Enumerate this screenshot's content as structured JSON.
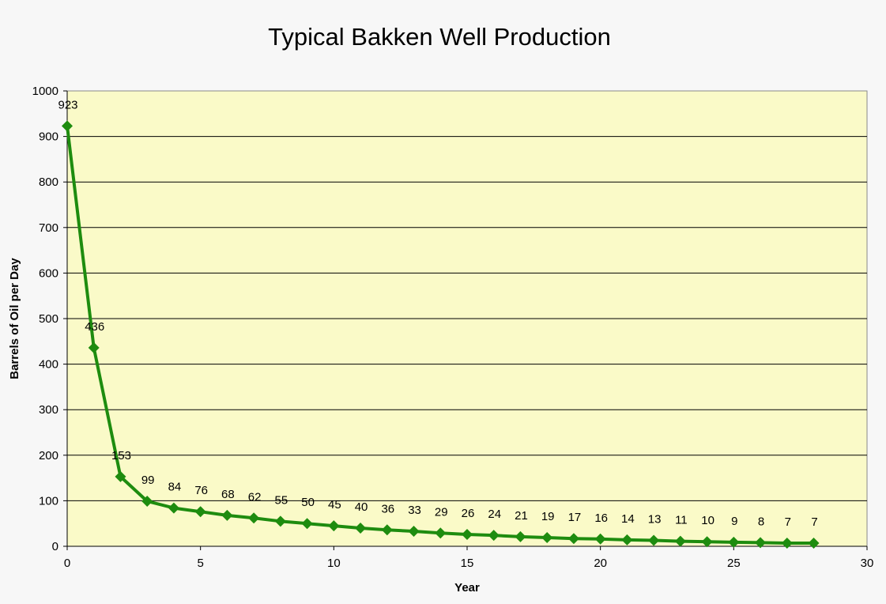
{
  "chart_data": {
    "type": "line",
    "title": "Typical Bakken Well Production",
    "xlabel": "Year",
    "ylabel": "Barrels of Oil per Day",
    "xlim": [
      0,
      30
    ],
    "ylim": [
      0,
      1000
    ],
    "xticks": [
      0,
      5,
      10,
      15,
      20,
      25,
      30
    ],
    "yticks": [
      0,
      100,
      200,
      300,
      400,
      500,
      600,
      700,
      800,
      900,
      1000
    ],
    "grid": "horizontal",
    "legend": "none",
    "x": [
      0,
      1,
      2,
      3,
      4,
      5,
      6,
      7,
      8,
      9,
      10,
      11,
      12,
      13,
      14,
      15,
      16,
      17,
      18,
      19,
      20,
      21,
      22,
      23,
      24,
      25,
      26,
      27,
      28
    ],
    "series": [
      {
        "values": [
          923,
          436,
          153,
          99,
          84,
          76,
          68,
          62,
          55,
          50,
          45,
          40,
          36,
          33,
          29,
          26,
          24,
          21,
          19,
          17,
          16,
          14,
          13,
          11,
          10,
          9,
          8,
          7,
          7
        ],
        "color": "#1e8c0f",
        "marker": "diamond",
        "data_labels": true
      }
    ],
    "colors": {
      "plot_background": "#fafac8",
      "page_background": "#f7f7f7",
      "gridline": "#000000"
    }
  }
}
